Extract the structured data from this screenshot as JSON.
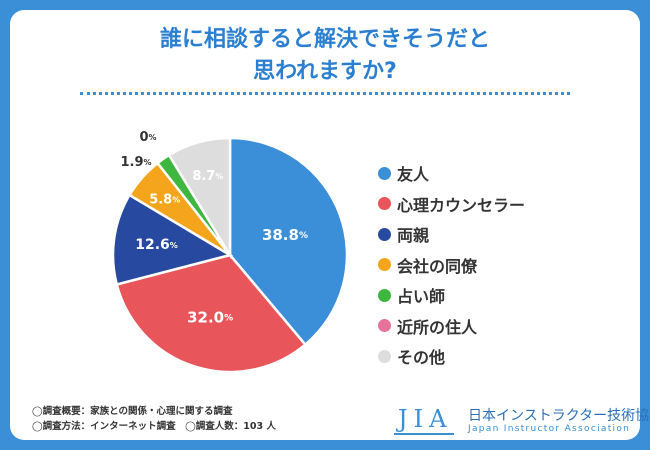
{
  "title": {
    "line1": "誰に相談すると解決できそうだと",
    "line2": "思われますか?"
  },
  "unit": "%",
  "colors": {
    "friend": "#3b8fd8",
    "counselor": "#e8555a",
    "parents": "#274aa0",
    "coworker": "#f4a51c",
    "fortune": "#3fb63f",
    "neighbor": "#e8739a",
    "other": "#dddddd"
  },
  "chart_data": {
    "type": "pie",
    "unit": "%",
    "slices": [
      {
        "label": "友人",
        "value": 38.8,
        "value_label": "38.8",
        "color": "#3b8fd8"
      },
      {
        "label": "心理カウンセラー",
        "value": 32.0,
        "value_label": "32.0",
        "color": "#e8555a"
      },
      {
        "label": "両親",
        "value": 12.6,
        "value_label": "12.6",
        "color": "#274aa0"
      },
      {
        "label": "会社の同僚",
        "value": 5.8,
        "value_label": "5.8",
        "color": "#f4a51c"
      },
      {
        "label": "占い師",
        "value": 1.9,
        "value_label": "1.9",
        "color": "#3fb63f"
      },
      {
        "label": "近所の住人",
        "value": 0,
        "value_label": "0",
        "color": "#e8739a"
      },
      {
        "label": "その他",
        "value": 8.7,
        "value_label": "8.7",
        "color": "#dddddd"
      }
    ],
    "legend_position": "right"
  },
  "notes": {
    "line1": "◯調査概要：家族との関係・心理に関する調査",
    "line2": "◯調査方法：インターネット調査　◯調査人数：103 人"
  },
  "logo": {
    "mark": "JIA",
    "name_jp": "日本インストラクター技術協会",
    "name_en": "Japan Instructor Association"
  }
}
